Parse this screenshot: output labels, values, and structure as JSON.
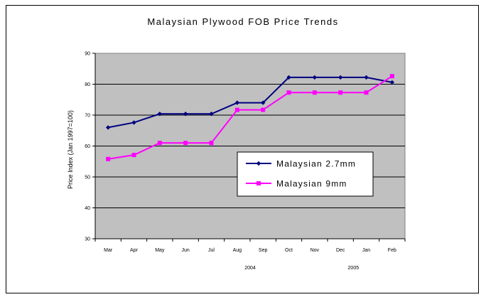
{
  "chart_data": {
    "type": "line",
    "title": "Malaysian Plywood FOB Price Trends",
    "ylabel": "Price Index (Jan 1997=100)",
    "xlabel": "",
    "categories": [
      "Mar",
      "Apr",
      "May",
      "Jun",
      "Jul",
      "Aug",
      "Sep",
      "Oct",
      "Nov",
      "Dec",
      "Jan",
      "Feb"
    ],
    "year_labels": [
      {
        "label": "2004",
        "category": "Aug",
        "offset": 0.5
      },
      {
        "label": "2005",
        "category": "Jan",
        "offset": -0.5
      }
    ],
    "ylim": [
      30,
      90
    ],
    "yticks": [
      30,
      40,
      50,
      60,
      70,
      80,
      90
    ],
    "grid": "horizontal",
    "legend_position": "middle-right",
    "plot_background": "#c0c0c0",
    "series": [
      {
        "name": "Malaysian 2.7mm",
        "color": "#000080",
        "marker": "diamond",
        "values": [
          66,
          67.6,
          70.4,
          70.4,
          70.4,
          74,
          74,
          82.2,
          82.2,
          82.2,
          82.2,
          80.6
        ]
      },
      {
        "name": "Malaysian 9mm",
        "color": "#ff00ff",
        "marker": "square",
        "values": [
          55.8,
          57.1,
          61,
          61,
          61,
          71.7,
          71.7,
          77.3,
          77.3,
          77.3,
          77.3,
          82.6
        ]
      }
    ]
  }
}
